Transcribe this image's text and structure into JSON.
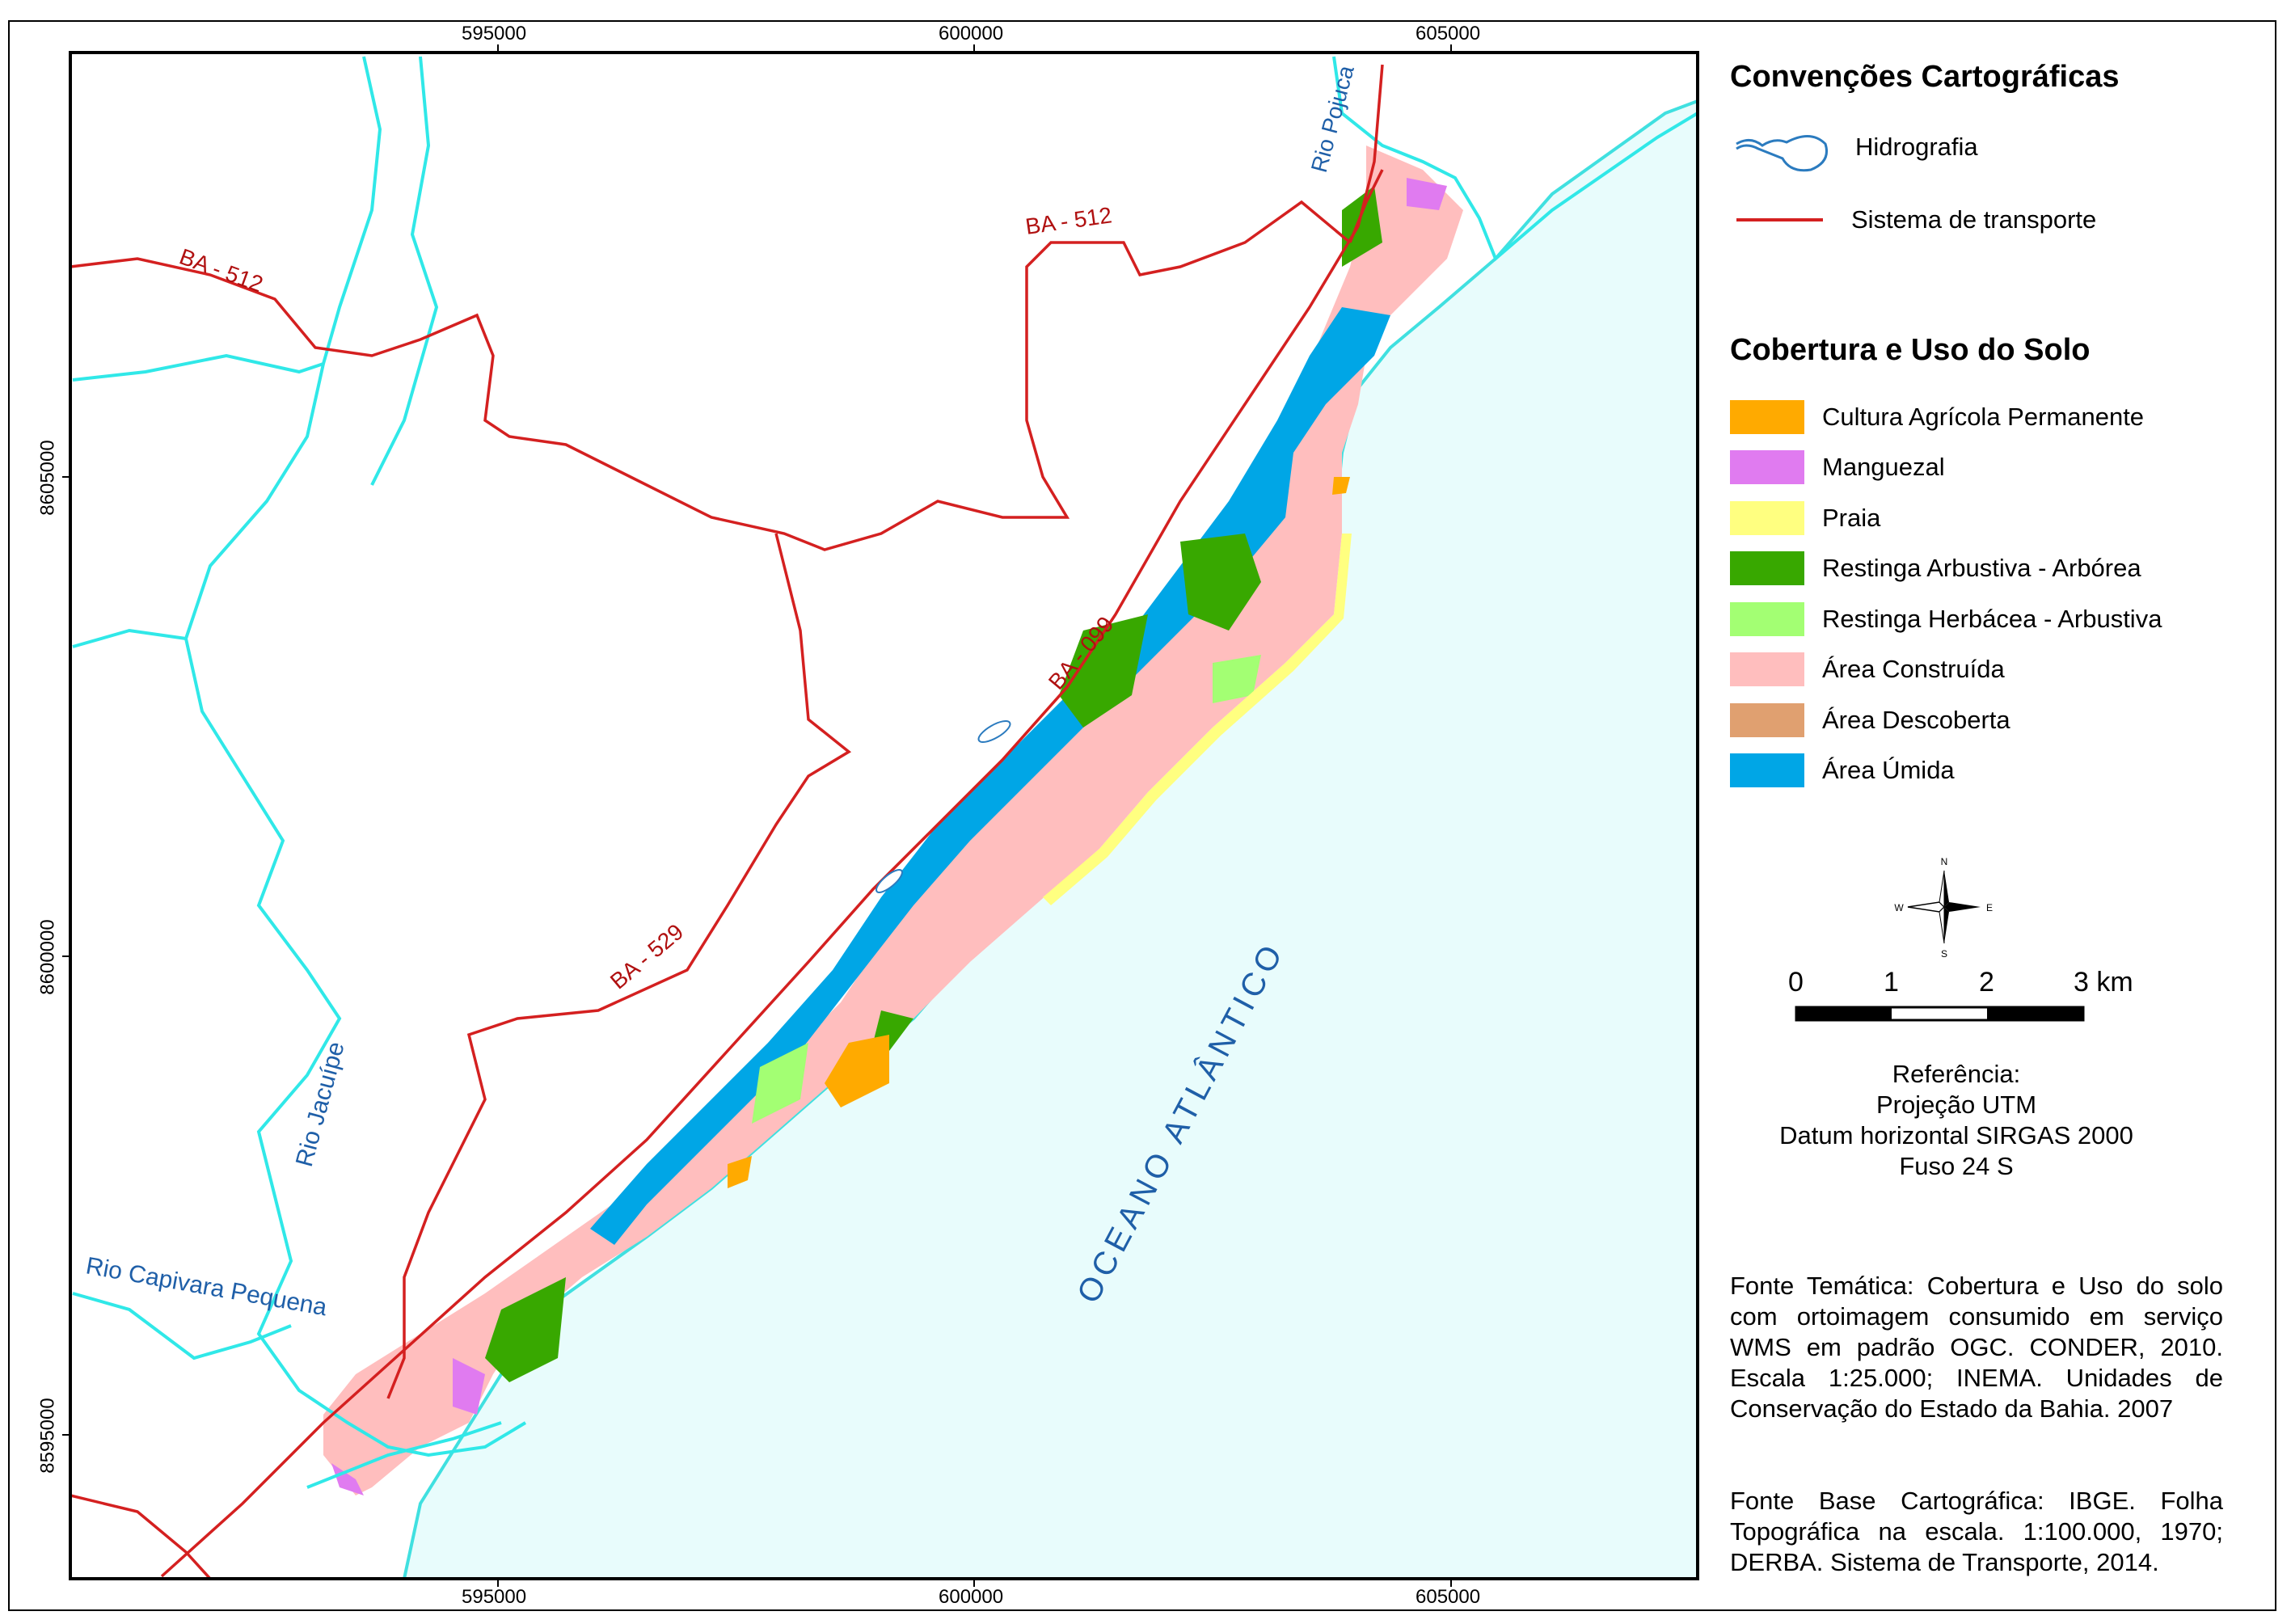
{
  "coordinates": {
    "easting_top": [
      "595000",
      "600000",
      "605000"
    ],
    "easting_bottom": [
      "595000",
      "600000",
      "605000"
    ],
    "northing_left": [
      "8605000",
      "8600000",
      "8595000"
    ]
  },
  "map_labels": {
    "roads": [
      "BA - 512",
      "BA - 512",
      "BA - 099",
      "BA - 529"
    ],
    "rivers": [
      "Rio Pojuca",
      "Rio Jacuípe",
      "Rio Capivara Pequena"
    ],
    "ocean": "OCEANO ATLÂNTICO"
  },
  "legend": {
    "conventions_title": "Convenções Cartográficas",
    "conventions": [
      {
        "label": "Hidrografia",
        "icon": "river-polygon-icon",
        "color": "#2b7bbf"
      },
      {
        "label": "Sistema de transporte",
        "icon": "road-line-icon",
        "color": "#d42020"
      }
    ],
    "landcover_title": "Cobertura e Uso do Solo",
    "landcover": [
      {
        "label": "Cultura Agrícola Permanente",
        "color": "#ffaa00"
      },
      {
        "label": "Manguezal",
        "color": "#e07bf0"
      },
      {
        "label": "Praia",
        "color": "#ffff80"
      },
      {
        "label": "Restinga Arbustiva - Arbórea",
        "color": "#38a800"
      },
      {
        "label": "Restinga Herbácea - Arbustiva",
        "color": "#a3ff73"
      },
      {
        "label": "Área Construída",
        "color": "#ffbebe"
      },
      {
        "label": "Área Descoberta",
        "color": "#e0a070"
      },
      {
        "label": "Área Úmida",
        "color": "#00a6e6"
      }
    ]
  },
  "north_arrow": {
    "n": "N",
    "s": "S",
    "e": "E",
    "w": "W"
  },
  "scale_bar": {
    "ticks": [
      "0",
      "1",
      "2",
      "3 km"
    ]
  },
  "reference": {
    "lines": [
      "Referência:",
      "Projeção UTM",
      "Datum horizontal SIRGAS 2000",
      "Fuso 24 S"
    ]
  },
  "sources": {
    "thematic": "Fonte Temática: Cobertura e Uso do solo com ortoimagem consumido em serviço WMS em padrão OGC. CONDER, 2010. Escala 1:25.000; INEMA. Unidades de Conservação do Estado da Bahia. 2007",
    "base": "Fonte Base Cartográfica: IBGE. Folha Topográfica na escala. 1:100.000, 1970; DERBA. Sistema de Transporte, 2014."
  },
  "colors": {
    "ocean": "#e8fcfc",
    "coast_line": "#40e0e0",
    "river": "#30e8e8",
    "road": "#d42020",
    "label_blue": "#1f5fa8"
  }
}
